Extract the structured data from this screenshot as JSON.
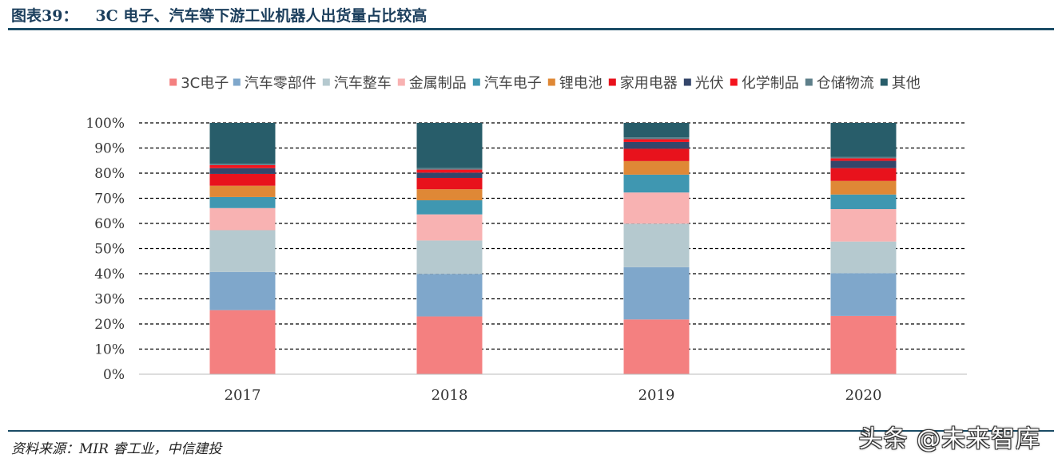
{
  "figure": {
    "number": "图表39：",
    "title": "3C 电子、汽车等下游工业机器人出货量占比较高",
    "source": "资料来源：MIR 睿工业，中信建投",
    "watermark": "头条 @未来智库"
  },
  "chart_data": {
    "type": "bar",
    "stacked": true,
    "title": "",
    "xlabel": "",
    "ylabel": "",
    "ylim": [
      0,
      100
    ],
    "y_ticks": [
      "0%",
      "10%",
      "20%",
      "30%",
      "40%",
      "50%",
      "60%",
      "70%",
      "80%",
      "90%",
      "100%"
    ],
    "grid": "dashed horizontal",
    "legend_position": "top",
    "categories": [
      "2017",
      "2018",
      "2019",
      "2020"
    ],
    "series": [
      {
        "name": "3C电子",
        "color": "#f48080",
        "values": [
          25.5,
          23.0,
          21.8,
          23.2
        ]
      },
      {
        "name": "汽车零部件",
        "color": "#7fa7cb",
        "values": [
          15.2,
          16.9,
          20.8,
          17.0
        ]
      },
      {
        "name": "汽车整车",
        "color": "#b5c9cf",
        "values": [
          16.6,
          13.3,
          17.3,
          12.6
        ]
      },
      {
        "name": "金属制品",
        "color": "#f8b2b2",
        "values": [
          8.8,
          10.4,
          12.4,
          12.9
        ]
      },
      {
        "name": "汽车电子",
        "color": "#3f97b1",
        "values": [
          4.4,
          5.6,
          7.1,
          5.8
        ]
      },
      {
        "name": "锂电池",
        "color": "#df8836",
        "values": [
          4.5,
          4.4,
          5.4,
          5.4
        ]
      },
      {
        "name": "家用电器",
        "color": "#e8121c",
        "values": [
          4.7,
          4.5,
          4.9,
          5.1
        ]
      },
      {
        "name": "光伏",
        "color": "#34466a",
        "values": [
          2.3,
          2.1,
          2.7,
          2.9
        ]
      },
      {
        "name": "化学制品",
        "color": "#f4141e",
        "values": [
          1.2,
          1.2,
          1.1,
          1.0
        ]
      },
      {
        "name": "仓储物流",
        "color": "#5e7f8a",
        "values": [
          0.6,
          0.6,
          0.7,
          0.6
        ]
      },
      {
        "name": "其他",
        "color": "#285d6a",
        "values": [
          16.2,
          18.0,
          5.8,
          13.5
        ]
      }
    ]
  }
}
